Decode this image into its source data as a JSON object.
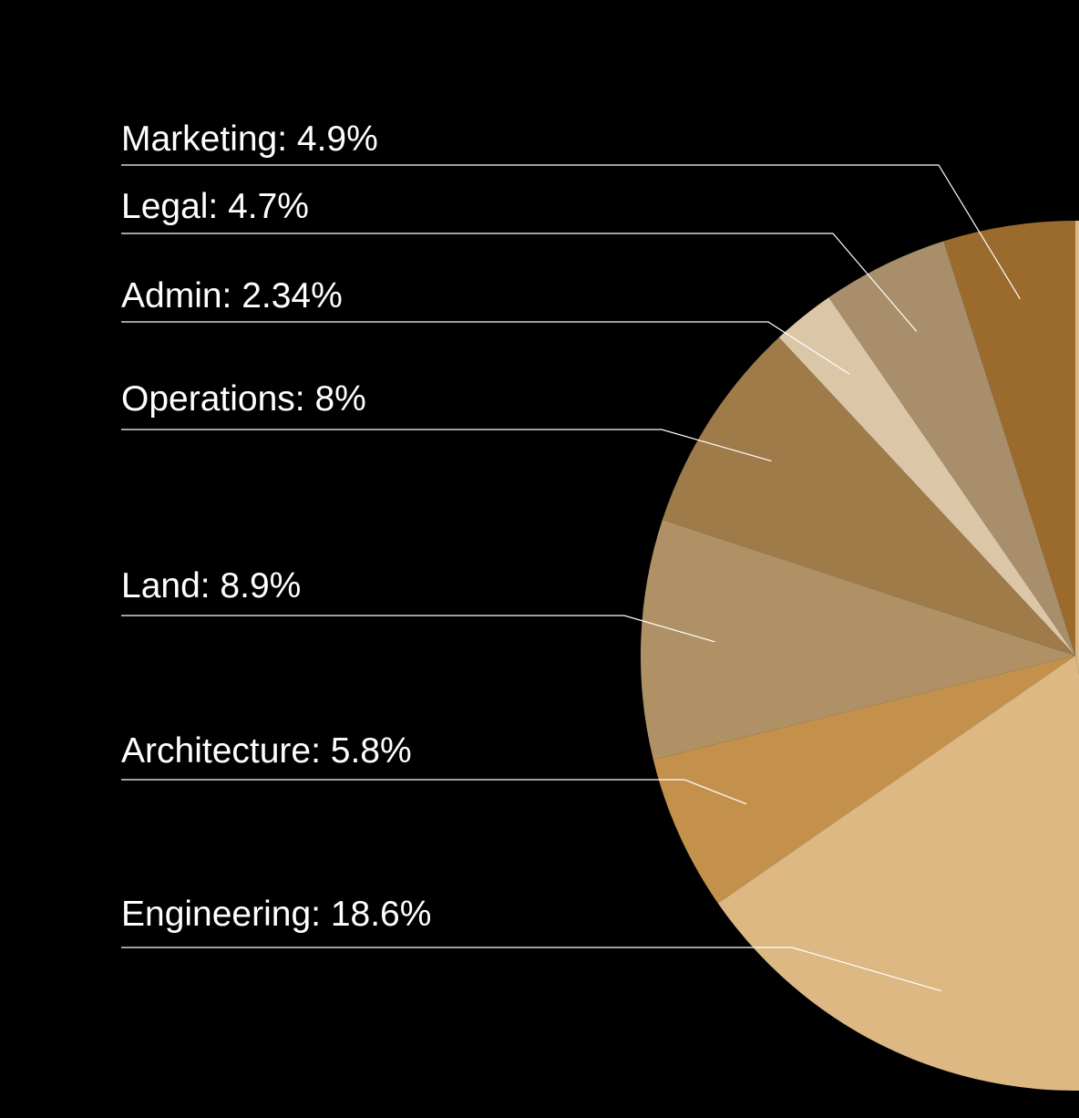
{
  "chart_data": {
    "type": "pie",
    "title": "",
    "slices": [
      {
        "name": "Marketing",
        "value": 4.9,
        "label": "Marketing: 4.9%",
        "color": "#9b6b2e"
      },
      {
        "name": "Legal",
        "value": 4.7,
        "label": "Legal: 4.7%",
        "color": "#a88e6b"
      },
      {
        "name": "Admin",
        "value": 2.34,
        "label": "Admin: 2.34%",
        "color": "#dbc6a8"
      },
      {
        "name": "Operations",
        "value": 8,
        "label": "Operations: 8%",
        "color": "#9e7b49"
      },
      {
        "name": "Land",
        "value": 8.9,
        "label": "Land: 8.9%",
        "color": "#b09166"
      },
      {
        "name": "Architecture",
        "value": 5.8,
        "label": "Architecture: 5.8%",
        "color": "#c4914d"
      },
      {
        "name": "Engineering",
        "value": 18.6,
        "label": "Engineering: 18.6%",
        "color": "#ddb883"
      }
    ],
    "legend": "none",
    "background": "#000000",
    "label_color": "#ffffff"
  }
}
